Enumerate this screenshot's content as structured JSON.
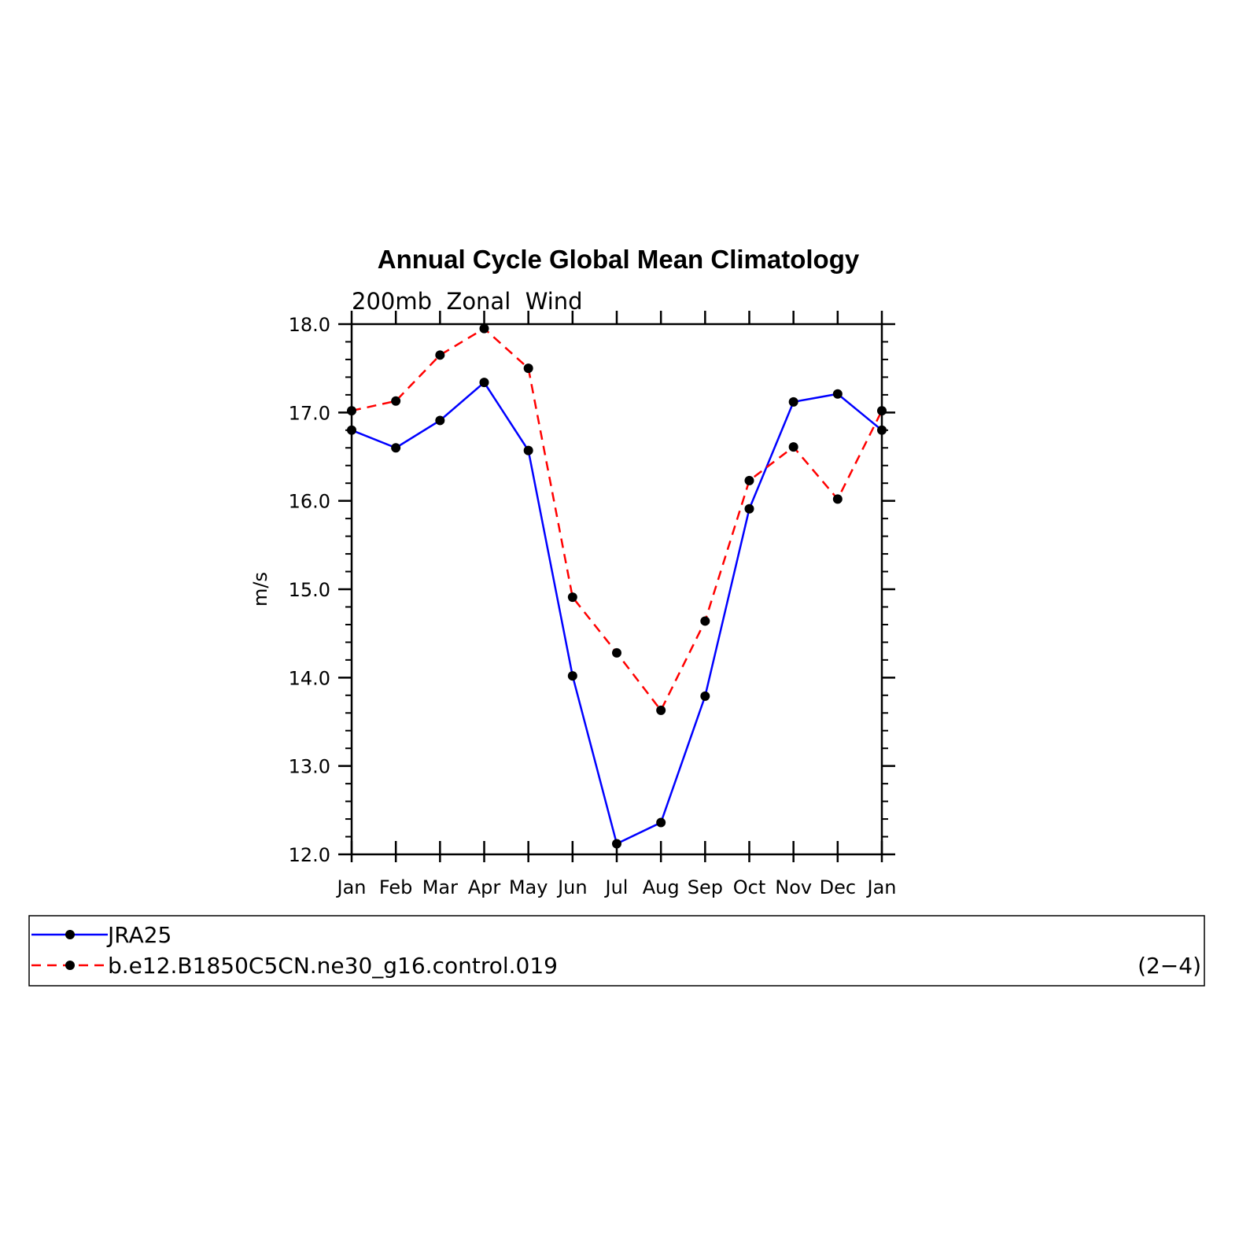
{
  "chart_data": {
    "type": "line",
    "title": "Annual Cycle Global Mean Climatology",
    "subtitle": "200mb  Zonal  Wind",
    "xlabel": "",
    "ylabel": "m/s",
    "categories": [
      "Jan",
      "Feb",
      "Mar",
      "Apr",
      "May",
      "Jun",
      "Jul",
      "Aug",
      "Sep",
      "Oct",
      "Nov",
      "Dec",
      "Jan"
    ],
    "ylim": [
      12.0,
      18.0
    ],
    "yticks": [
      "12.0",
      "13.0",
      "14.0",
      "15.0",
      "16.0",
      "17.0",
      "18.0"
    ],
    "grid": false,
    "legend_position": "bottom",
    "series": [
      {
        "name": "JRA25",
        "color": "#0000ff",
        "line_style": "solid",
        "marker": "filled-circle",
        "values": [
          16.8,
          16.6,
          16.91,
          17.34,
          16.57,
          14.02,
          12.12,
          12.36,
          13.79,
          15.91,
          17.12,
          17.21,
          16.8
        ]
      },
      {
        "name": "b.e12.B1850C5CN.ne30_g16.control.019",
        "color": "#ff0000",
        "line_style": "dashed",
        "marker": "filled-circle",
        "values": [
          17.02,
          17.13,
          17.65,
          17.95,
          17.5,
          14.91,
          14.28,
          13.63,
          14.64,
          16.23,
          16.61,
          16.02,
          17.02
        ]
      }
    ],
    "annotation": "(2−4)"
  }
}
